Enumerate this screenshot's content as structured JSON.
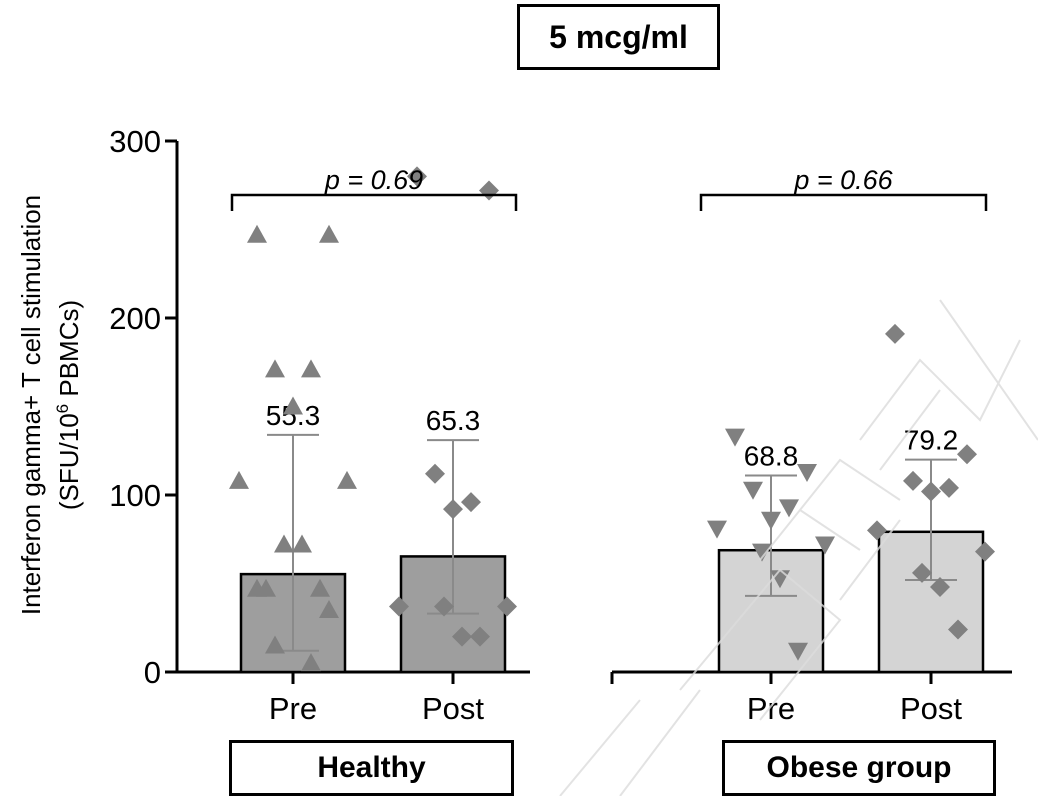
{
  "chart_data": {
    "type": "bar",
    "title": "5 mcg/ml",
    "ylabel_line1": "Interferon gamma+ T cell stimulation",
    "ylabel_line2_pre": "(SFU/10",
    "ylabel_line2_sup": "6",
    "ylabel_line2_post": " PBMCs)",
    "ylim": [
      0,
      300
    ],
    "yticks": [
      "0",
      "100",
      "200",
      "300"
    ],
    "groups": [
      {
        "name": "Healthy",
        "p_value": "p = 0.69",
        "categories": [
          "Pre",
          "Post"
        ]
      },
      {
        "name": "Obese group",
        "p_value": "p = 0.66",
        "categories": [
          "Pre",
          "Post"
        ]
      }
    ],
    "colors": {
      "healthy_bar": "#9e9e9e",
      "obese_bar": "#d4d4d4",
      "points": "#808080",
      "error": "#8a8a8a"
    },
    "bars": [
      {
        "group": "Healthy",
        "category": "Pre",
        "value": 55.3,
        "label": "55.3",
        "error": [
          12,
          134
        ],
        "marker": "triangle-up",
        "points": [
          247,
          247,
          171,
          171,
          150,
          108,
          108,
          72,
          72,
          47,
          47,
          47,
          35,
          15,
          5
        ]
      },
      {
        "group": "Healthy",
        "category": "Post",
        "value": 65.3,
        "label": "65.3",
        "error": [
          33,
          131
        ],
        "marker": "diamond",
        "points": [
          280,
          272,
          112,
          96,
          92,
          37,
          37,
          37,
          20,
          20
        ]
      },
      {
        "group": "Obese group",
        "category": "Pre",
        "value": 68.8,
        "label": "68.8",
        "error": [
          43,
          111
        ],
        "marker": "triangle-down",
        "points": [
          133,
          113,
          103,
          93,
          86,
          81,
          72,
          68,
          53,
          12
        ]
      },
      {
        "group": "Obese group",
        "category": "Post",
        "value": 79.2,
        "label": "79.2",
        "error": [
          52,
          120
        ],
        "marker": "diamond",
        "points": [
          191,
          123,
          108,
          104,
          102,
          80,
          68,
          56,
          48,
          24
        ]
      }
    ]
  }
}
